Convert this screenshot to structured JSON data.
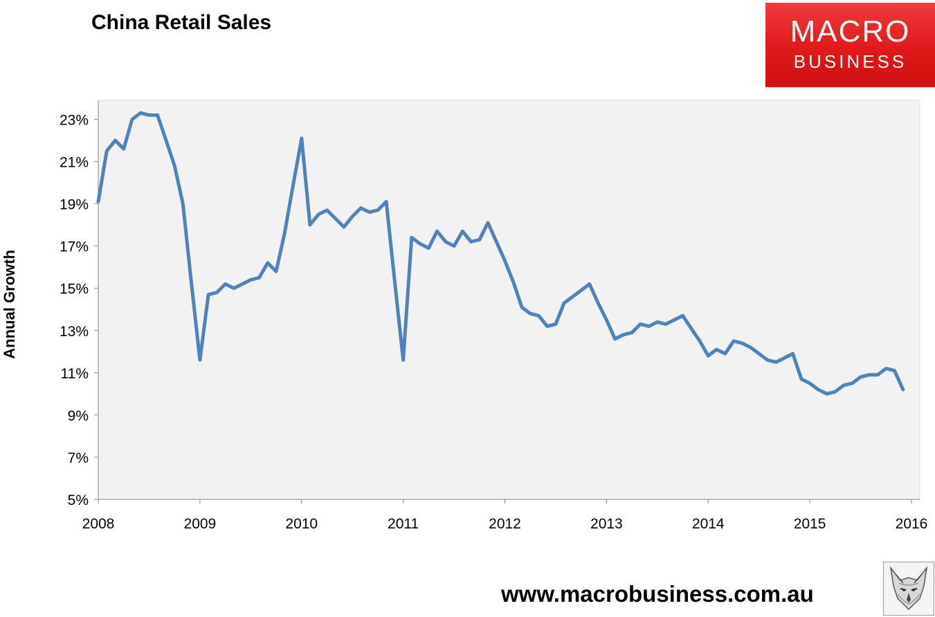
{
  "title": "China Retail Sales",
  "logo": {
    "line1": "MACRO",
    "line2": "BUSINESS"
  },
  "footer_url": "www.macrobusiness.com.au",
  "colors": {
    "line": "#4f81bd",
    "plot_bg": "#f2f2f2",
    "logo_red": "#e31e1e"
  },
  "chart_data": {
    "type": "line",
    "title": "China Retail Sales",
    "ylabel": "Annual Growth",
    "xlabel": "",
    "ylim": [
      5,
      24
    ],
    "xlim": [
      2008,
      2016
    ],
    "y_ticks": [
      5,
      7,
      9,
      11,
      13,
      15,
      17,
      19,
      21,
      23
    ],
    "y_tick_labels": [
      "5%",
      "7%",
      "9%",
      "11%",
      "13%",
      "15%",
      "17%",
      "19%",
      "21%",
      "23%"
    ],
    "x_ticks": [
      2008,
      2009,
      2010,
      2011,
      2012,
      2013,
      2014,
      2015,
      2016
    ],
    "x_tick_labels": [
      "2008",
      "2009",
      "2010",
      "2011",
      "2012",
      "2013",
      "2014",
      "2015",
      "2016"
    ],
    "grid": false,
    "series": [
      {
        "values": [
          [
            2008.0,
            19.1
          ],
          [
            2008.083,
            21.5
          ],
          [
            2008.167,
            22.0
          ],
          [
            2008.25,
            21.6
          ],
          [
            2008.333,
            23.0
          ],
          [
            2008.417,
            23.3
          ],
          [
            2008.5,
            23.2
          ],
          [
            2008.583,
            23.2
          ],
          [
            2008.667,
            22.0
          ],
          [
            2008.75,
            20.8
          ],
          [
            2008.833,
            19.0
          ],
          [
            2008.917,
            15.2
          ],
          [
            2009.0,
            11.6
          ],
          [
            2009.083,
            14.7
          ],
          [
            2009.167,
            14.8
          ],
          [
            2009.25,
            15.2
          ],
          [
            2009.333,
            15.0
          ],
          [
            2009.417,
            15.2
          ],
          [
            2009.5,
            15.4
          ],
          [
            2009.583,
            15.5
          ],
          [
            2009.667,
            16.2
          ],
          [
            2009.75,
            15.8
          ],
          [
            2009.833,
            17.6
          ],
          [
            2009.917,
            19.9
          ],
          [
            2010.0,
            22.1
          ],
          [
            2010.083,
            18.0
          ],
          [
            2010.167,
            18.5
          ],
          [
            2010.25,
            18.7
          ],
          [
            2010.333,
            18.3
          ],
          [
            2010.417,
            17.9
          ],
          [
            2010.5,
            18.4
          ],
          [
            2010.583,
            18.8
          ],
          [
            2010.667,
            18.6
          ],
          [
            2010.75,
            18.7
          ],
          [
            2010.833,
            19.1
          ],
          [
            2010.917,
            15.3
          ],
          [
            2011.0,
            11.6
          ],
          [
            2011.083,
            17.4
          ],
          [
            2011.167,
            17.1
          ],
          [
            2011.25,
            16.9
          ],
          [
            2011.333,
            17.7
          ],
          [
            2011.417,
            17.2
          ],
          [
            2011.5,
            17.0
          ],
          [
            2011.583,
            17.7
          ],
          [
            2011.667,
            17.2
          ],
          [
            2011.75,
            17.3
          ],
          [
            2011.833,
            18.1
          ],
          [
            2011.917,
            17.2
          ],
          [
            2012.0,
            16.3
          ],
          [
            2012.083,
            15.3
          ],
          [
            2012.167,
            14.1
          ],
          [
            2012.25,
            13.8
          ],
          [
            2012.333,
            13.7
          ],
          [
            2012.417,
            13.2
          ],
          [
            2012.5,
            13.3
          ],
          [
            2012.583,
            14.3
          ],
          [
            2012.667,
            14.6
          ],
          [
            2012.75,
            14.9
          ],
          [
            2012.833,
            15.2
          ],
          [
            2012.917,
            14.3
          ],
          [
            2013.0,
            13.5
          ],
          [
            2013.083,
            12.6
          ],
          [
            2013.167,
            12.8
          ],
          [
            2013.25,
            12.9
          ],
          [
            2013.333,
            13.3
          ],
          [
            2013.417,
            13.2
          ],
          [
            2013.5,
            13.4
          ],
          [
            2013.583,
            13.3
          ],
          [
            2013.667,
            13.5
          ],
          [
            2013.75,
            13.7
          ],
          [
            2013.833,
            13.1
          ],
          [
            2013.917,
            12.5
          ],
          [
            2014.0,
            11.8
          ],
          [
            2014.083,
            12.1
          ],
          [
            2014.167,
            11.9
          ],
          [
            2014.25,
            12.5
          ],
          [
            2014.333,
            12.4
          ],
          [
            2014.417,
            12.2
          ],
          [
            2014.5,
            11.9
          ],
          [
            2014.583,
            11.6
          ],
          [
            2014.667,
            11.5
          ],
          [
            2014.75,
            11.7
          ],
          [
            2014.833,
            11.9
          ],
          [
            2014.917,
            10.7
          ],
          [
            2015.0,
            10.5
          ],
          [
            2015.083,
            10.2
          ],
          [
            2015.167,
            10.0
          ],
          [
            2015.25,
            10.1
          ],
          [
            2015.333,
            10.4
          ],
          [
            2015.417,
            10.5
          ],
          [
            2015.5,
            10.8
          ],
          [
            2015.583,
            10.9
          ],
          [
            2015.667,
            10.9
          ],
          [
            2015.75,
            11.2
          ],
          [
            2015.833,
            11.1
          ],
          [
            2015.917,
            10.2
          ]
        ]
      }
    ]
  }
}
